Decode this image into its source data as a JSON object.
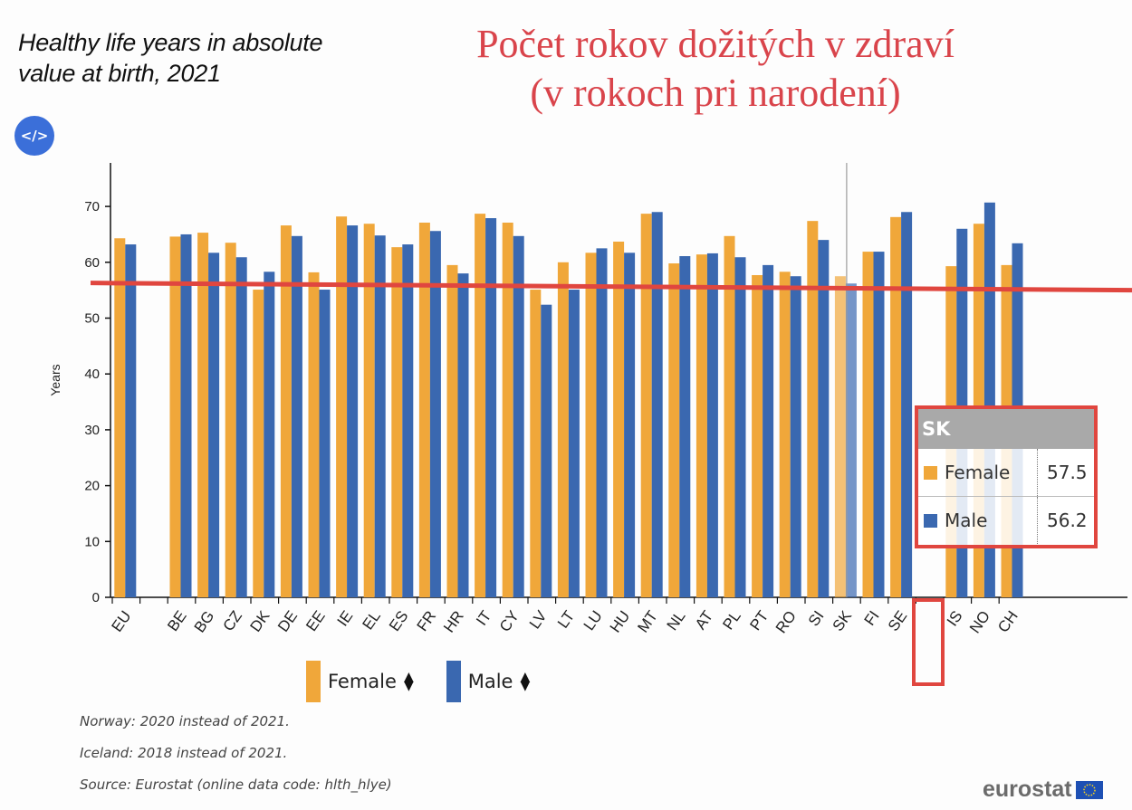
{
  "header": {
    "title_line1": "Healthy life years in absolute",
    "title_line2": "value at birth, 2021",
    "overlay_line1": "Počet rokov dožitých v zdraví",
    "overlay_line2": "(v rokoch pri narodení)",
    "embed_icon": "code-embed-icon",
    "embed_label": "</>"
  },
  "colors": {
    "female": "#f0a73a",
    "male": "#3a68b0",
    "reference_line": "#e0463f",
    "tooltip_header": "#a9a9a9"
  },
  "legend": {
    "female_label": "Female",
    "male_label": "Male",
    "sort_icon": "sort-updown-icon"
  },
  "tooltip": {
    "country": "SK",
    "rows": [
      {
        "label": "Female",
        "value": "57.5"
      },
      {
        "label": "Male",
        "value": "56.2"
      }
    ]
  },
  "notes": {
    "n1": "Norway: 2020 instead of 2021.",
    "n2": "Iceland: 2018 instead of 2021.",
    "source": "Source: Eurostat (online data code: hlth_hlye)"
  },
  "logo": {
    "text": "eurostat",
    "flag_icon": "eu-flag-icon"
  },
  "chart_data": {
    "type": "bar",
    "title": "Healthy life years in absolute value at birth, 2021",
    "subtitle_overlay": "Počet rokov dožitých v zdraví (v rokoch pri narodení)",
    "xlabel": "",
    "ylabel": "Years",
    "ylim": [
      0,
      77
    ],
    "yticks": [
      0,
      10,
      20,
      30,
      40,
      50,
      60,
      70
    ],
    "grid": false,
    "legend_position": "bottom",
    "categories": [
      "EU",
      "",
      "BE",
      "BG",
      "CZ",
      "DK",
      "DE",
      "EE",
      "IE",
      "EL",
      "ES",
      "FR",
      "HR",
      "IT",
      "CY",
      "LV",
      "LT",
      "LU",
      "HU",
      "MT",
      "NL",
      "AT",
      "PL",
      "PT",
      "RO",
      "SI",
      "SK",
      "FI",
      "SE",
      "",
      "IS",
      "NO",
      "CH"
    ],
    "series": [
      {
        "name": "Female",
        "color": "#f0a73a",
        "values": [
          64.3,
          null,
          64.6,
          65.3,
          63.5,
          55.1,
          66.6,
          58.2,
          68.2,
          66.9,
          62.7,
          67.1,
          59.5,
          68.7,
          67.1,
          55.1,
          60.0,
          61.7,
          63.7,
          68.7,
          59.8,
          61.4,
          64.7,
          57.7,
          58.3,
          67.4,
          57.5,
          61.9,
          68.1,
          null,
          59.3,
          66.9,
          59.5
        ]
      },
      {
        "name": "Male",
        "color": "#3a68b0",
        "values": [
          63.2,
          null,
          65.0,
          61.7,
          60.9,
          58.3,
          64.7,
          55.1,
          66.6,
          64.8,
          63.2,
          65.6,
          58.0,
          67.9,
          64.7,
          52.4,
          55.1,
          62.5,
          61.7,
          69.0,
          61.1,
          61.6,
          60.9,
          59.5,
          57.5,
          64.0,
          56.2,
          61.9,
          69.0,
          null,
          66.0,
          70.7,
          63.4
        ]
      }
    ],
    "annotations": [
      {
        "type": "hline",
        "y": 55.8,
        "color": "#e0463f",
        "note": "red reference line drawn over chart (approx. SK level)"
      },
      {
        "type": "highlight",
        "category": "SK",
        "note": "red box around SK label and tooltip"
      }
    ],
    "highlighted_category": "SK"
  }
}
